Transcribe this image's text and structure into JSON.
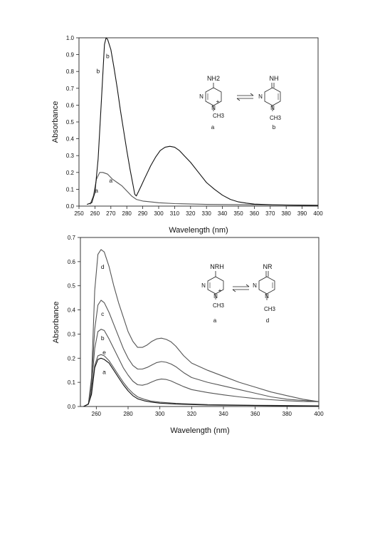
{
  "chart_data": [
    {
      "type": "line",
      "xlabel": "Wavelength (nm)",
      "ylabel": "Absorbance",
      "xlim": [
        250,
        400
      ],
      "ylim": [
        0,
        1.0
      ],
      "xticks": [
        250,
        260,
        270,
        280,
        290,
        300,
        310,
        320,
        330,
        340,
        350,
        360,
        370,
        380,
        390,
        400
      ],
      "yticks": [
        0.0,
        0.1,
        0.2,
        0.3,
        0.4,
        0.5,
        0.6,
        0.7,
        0.8,
        0.9,
        1.0
      ],
      "xtick_labels": [
        "250",
        "260",
        "270",
        "280",
        "290",
        "300",
        "310",
        "320",
        "330",
        "340",
        "350",
        "360",
        "370",
        "380",
        "390",
        "400"
      ],
      "ytick_labels": [
        "0.0",
        "0.1",
        "0.2",
        "0.3",
        "0.4",
        "0.5",
        "0.6",
        "0.7",
        "0.8",
        "0.9",
        "1.0"
      ],
      "grid": false,
      "series": [
        {
          "name": "a",
          "color": "#555555",
          "points": [
            [
              257,
              0.01
            ],
            [
              259,
              0.06
            ],
            [
              261,
              0.16
            ],
            [
              263,
              0.2
            ],
            [
              265,
              0.2
            ],
            [
              268,
              0.19
            ],
            [
              271,
              0.16
            ],
            [
              274,
              0.14
            ],
            [
              277,
              0.12
            ],
            [
              280,
              0.09
            ],
            [
              283,
              0.06
            ],
            [
              286,
              0.04
            ],
            [
              290,
              0.03
            ],
            [
              295,
              0.025
            ],
            [
              300,
              0.02
            ],
            [
              310,
              0.015
            ],
            [
              330,
              0.01
            ],
            [
              360,
              0.008
            ],
            [
              400,
              0.005
            ]
          ]
        },
        {
          "name": "b",
          "color": "#111111",
          "points": [
            [
              255,
              0.01
            ],
            [
              258,
              0.02
            ],
            [
              260,
              0.08
            ],
            [
              262,
              0.28
            ],
            [
              264,
              0.62
            ],
            [
              266,
              0.96
            ],
            [
              267,
              1.0
            ],
            [
              268,
              0.99
            ],
            [
              270,
              0.93
            ],
            [
              272,
              0.82
            ],
            [
              274,
              0.7
            ],
            [
              276,
              0.57
            ],
            [
              278,
              0.45
            ],
            [
              280,
              0.33
            ],
            [
              282,
              0.22
            ],
            [
              284,
              0.12
            ],
            [
              285,
              0.07
            ],
            [
              286,
              0.06
            ],
            [
              287,
              0.08
            ],
            [
              289,
              0.12
            ],
            [
              291,
              0.16
            ],
            [
              293,
              0.2
            ],
            [
              295,
              0.24
            ],
            [
              298,
              0.29
            ],
            [
              301,
              0.33
            ],
            [
              304,
              0.35
            ],
            [
              307,
              0.355
            ],
            [
              310,
              0.35
            ],
            [
              313,
              0.33
            ],
            [
              316,
              0.3
            ],
            [
              320,
              0.26
            ],
            [
              325,
              0.2
            ],
            [
              330,
              0.14
            ],
            [
              335,
              0.1
            ],
            [
              340,
              0.065
            ],
            [
              345,
              0.04
            ],
            [
              350,
              0.025
            ],
            [
              355,
              0.018
            ],
            [
              360,
              0.012
            ],
            [
              370,
              0.008
            ],
            [
              380,
              0.006
            ],
            [
              390,
              0.005
            ],
            [
              400,
              0.004
            ]
          ]
        }
      ],
      "annotations": [
        {
          "text": "b",
          "x": 268,
          "y": 0.88
        },
        {
          "text": "b",
          "x": 262,
          "y": 0.79
        },
        {
          "text": "a",
          "x": 270,
          "y": 0.14
        },
        {
          "text": "a",
          "x": 261,
          "y": 0.08
        }
      ],
      "scheme": {
        "left": {
          "top": "NH2",
          "ring": [
            "N",
            "+",
            "N"
          ],
          "sub": "CH3",
          "label": "a"
        },
        "right": {
          "top": "NH",
          "ring": [
            "N",
            "N"
          ],
          "sub": "CH3",
          "label": "b"
        }
      }
    },
    {
      "type": "line",
      "xlabel": "Wavelength (nm)",
      "ylabel": "Absorbance",
      "xlim": [
        250,
        400
      ],
      "ylim": [
        0,
        0.7
      ],
      "xticks": [
        260,
        280,
        300,
        320,
        340,
        360,
        380,
        400
      ],
      "yticks": [
        0.0,
        0.1,
        0.2,
        0.3,
        0.4,
        0.5,
        0.6,
        0.7
      ],
      "xtick_labels": [
        "260",
        "280",
        "300",
        "320",
        "340",
        "360",
        "380",
        "400"
      ],
      "ytick_labels": [
        "0.0",
        "0.1",
        "0.2",
        "0.3",
        "0.4",
        "0.5",
        "0.6",
        "0.7"
      ],
      "grid": false,
      "series": [
        {
          "name": "d",
          "color": "#555555",
          "points": [
            [
              252,
              0.0
            ],
            [
              255,
              0.01
            ],
            [
              257,
              0.12
            ],
            [
              259,
              0.48
            ],
            [
              261,
              0.63
            ],
            [
              263,
              0.65
            ],
            [
              265,
              0.64
            ],
            [
              268,
              0.58
            ],
            [
              271,
              0.5
            ],
            [
              274,
              0.43
            ],
            [
              277,
              0.37
            ],
            [
              280,
              0.31
            ],
            [
              283,
              0.27
            ],
            [
              286,
              0.245
            ],
            [
              289,
              0.245
            ],
            [
              292,
              0.255
            ],
            [
              295,
              0.27
            ],
            [
              298,
              0.28
            ],
            [
              301,
              0.283
            ],
            [
              304,
              0.278
            ],
            [
              307,
              0.268
            ],
            [
              310,
              0.25
            ],
            [
              315,
              0.21
            ],
            [
              320,
              0.18
            ],
            [
              330,
              0.15
            ],
            [
              340,
              0.125
            ],
            [
              350,
              0.1
            ],
            [
              360,
              0.08
            ],
            [
              370,
              0.06
            ],
            [
              380,
              0.045
            ],
            [
              390,
              0.03
            ],
            [
              400,
              0.02
            ]
          ]
        },
        {
          "name": "c",
          "color": "#555555",
          "points": [
            [
              252,
              0.0
            ],
            [
              255,
              0.01
            ],
            [
              257,
              0.1
            ],
            [
              259,
              0.32
            ],
            [
              261,
              0.42
            ],
            [
              263,
              0.44
            ],
            [
              265,
              0.43
            ],
            [
              268,
              0.39
            ],
            [
              271,
              0.34
            ],
            [
              274,
              0.29
            ],
            [
              277,
              0.24
            ],
            [
              280,
              0.2
            ],
            [
              283,
              0.17
            ],
            [
              286,
              0.155
            ],
            [
              289,
              0.155
            ],
            [
              292,
              0.162
            ],
            [
              295,
              0.172
            ],
            [
              298,
              0.182
            ],
            [
              301,
              0.186
            ],
            [
              304,
              0.183
            ],
            [
              307,
              0.176
            ],
            [
              310,
              0.165
            ],
            [
              315,
              0.14
            ],
            [
              320,
              0.12
            ],
            [
              330,
              0.1
            ],
            [
              340,
              0.085
            ],
            [
              350,
              0.07
            ],
            [
              360,
              0.055
            ],
            [
              370,
              0.04
            ],
            [
              380,
              0.03
            ],
            [
              390,
              0.025
            ],
            [
              400,
              0.02
            ]
          ]
        },
        {
          "name": "b",
          "color": "#555555",
          "points": [
            [
              252,
              0.0
            ],
            [
              255,
              0.01
            ],
            [
              257,
              0.08
            ],
            [
              259,
              0.24
            ],
            [
              261,
              0.31
            ],
            [
              263,
              0.32
            ],
            [
              265,
              0.315
            ],
            [
              268,
              0.28
            ],
            [
              271,
              0.24
            ],
            [
              274,
              0.2
            ],
            [
              277,
              0.16
            ],
            [
              280,
              0.13
            ],
            [
              283,
              0.105
            ],
            [
              286,
              0.09
            ],
            [
              289,
              0.088
            ],
            [
              292,
              0.093
            ],
            [
              295,
              0.102
            ],
            [
              298,
              0.11
            ],
            [
              301,
              0.114
            ],
            [
              304,
              0.112
            ],
            [
              307,
              0.106
            ],
            [
              310,
              0.097
            ],
            [
              315,
              0.082
            ],
            [
              320,
              0.07
            ],
            [
              330,
              0.058
            ],
            [
              340,
              0.048
            ],
            [
              350,
              0.04
            ],
            [
              360,
              0.033
            ],
            [
              370,
              0.028
            ],
            [
              380,
              0.024
            ],
            [
              390,
              0.021
            ],
            [
              400,
              0.02
            ]
          ]
        },
        {
          "name": "e",
          "color": "#555555",
          "points": [
            [
              252,
              0.0
            ],
            [
              255,
              0.01
            ],
            [
              257,
              0.06
            ],
            [
              259,
              0.17
            ],
            [
              261,
              0.21
            ],
            [
              263,
              0.215
            ],
            [
              265,
              0.21
            ],
            [
              268,
              0.19
            ],
            [
              271,
              0.16
            ],
            [
              274,
              0.13
            ],
            [
              277,
              0.1
            ],
            [
              280,
              0.075
            ],
            [
              283,
              0.055
            ],
            [
              286,
              0.04
            ],
            [
              290,
              0.03
            ],
            [
              295,
              0.022
            ],
            [
              300,
              0.018
            ],
            [
              310,
              0.013
            ],
            [
              330,
              0.008
            ],
            [
              360,
              0.005
            ],
            [
              400,
              0.003
            ]
          ]
        },
        {
          "name": "a",
          "color": "#111111",
          "points": [
            [
              252,
              0.0
            ],
            [
              255,
              0.01
            ],
            [
              257,
              0.05
            ],
            [
              259,
              0.16
            ],
            [
              261,
              0.195
            ],
            [
              263,
              0.2
            ],
            [
              265,
              0.195
            ],
            [
              268,
              0.18
            ],
            [
              271,
              0.15
            ],
            [
              274,
              0.12
            ],
            [
              277,
              0.09
            ],
            [
              280,
              0.065
            ],
            [
              283,
              0.045
            ],
            [
              286,
              0.032
            ],
            [
              290,
              0.024
            ],
            [
              295,
              0.018
            ],
            [
              300,
              0.014
            ],
            [
              310,
              0.01
            ],
            [
              330,
              0.006
            ],
            [
              360,
              0.004
            ],
            [
              400,
              0.002
            ]
          ]
        }
      ],
      "annotations": [
        {
          "text": "d",
          "x": 264,
          "y": 0.57
        },
        {
          "text": "c",
          "x": 264,
          "y": 0.375
        },
        {
          "text": "b",
          "x": 264,
          "y": 0.275
        },
        {
          "text": "e",
          "x": 265,
          "y": 0.215
        },
        {
          "text": "a",
          "x": 265,
          "y": 0.135
        }
      ],
      "scheme": {
        "left": {
          "top": "NRH",
          "ring": [
            "N",
            "+",
            "N"
          ],
          "sub": "CH3",
          "label": "a"
        },
        "right": {
          "top": "NR",
          "ring": [
            "N",
            "N"
          ],
          "sub": "CH3",
          "label": "d"
        }
      }
    }
  ]
}
